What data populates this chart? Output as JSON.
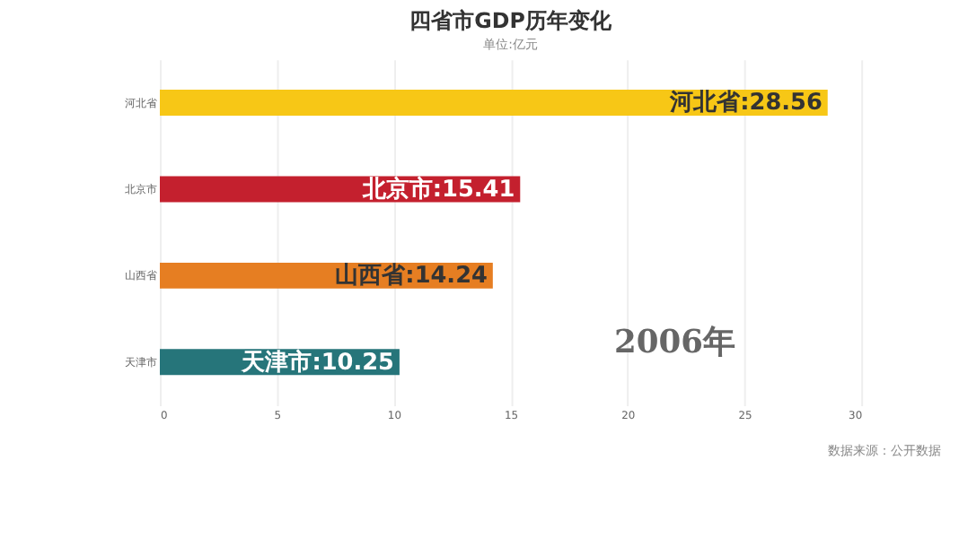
{
  "chart_data": {
    "type": "bar",
    "orientation": "horizontal",
    "title": "四省市GDP历年变化",
    "subtitle": "单位:亿元",
    "categories": [
      "河北省",
      "北京市",
      "山西省",
      "天津市"
    ],
    "values": [
      28.56,
      15.41,
      14.24,
      10.25
    ],
    "colors": [
      "#f7c716",
      "#c4202e",
      "#e67e22",
      "#26757a"
    ],
    "value_labels": [
      "河北省:28.56",
      "北京市:15.41",
      "山西省:14.24",
      "天津市:10.25"
    ],
    "xlim": [
      0,
      30
    ],
    "xticks": [
      0,
      5,
      10,
      15,
      20,
      25,
      30
    ],
    "grid": "x",
    "annotations": [
      "2006年",
      "数据来源：公开数据"
    ]
  }
}
